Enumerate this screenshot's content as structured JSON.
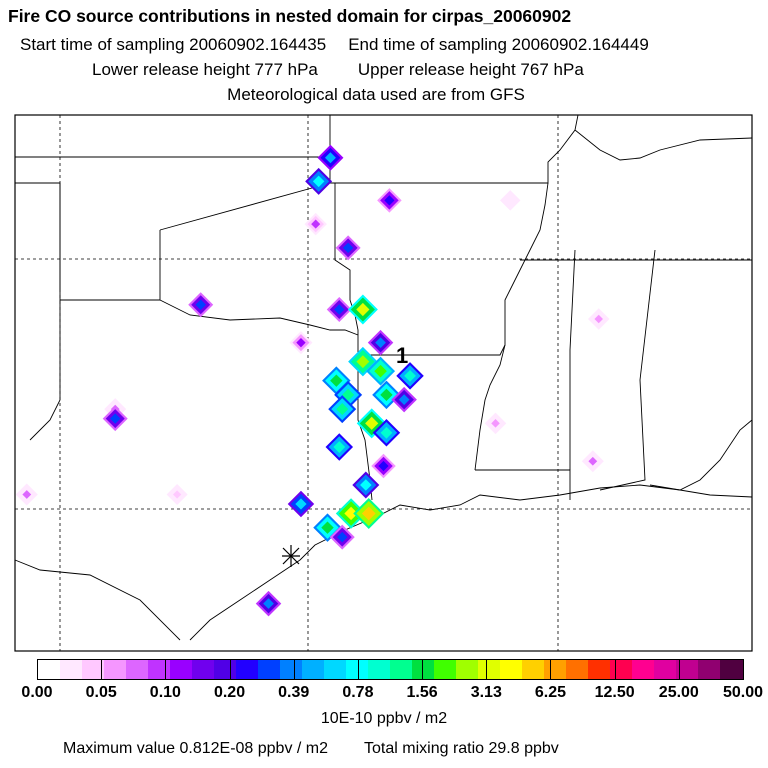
{
  "header": {
    "title": "Fire CO source contributions in nested domain for cirpas_20060902",
    "start_label": "Start time of sampling 20060902.164435",
    "end_label": "End time of sampling 20060902.164449",
    "lower_label": "Lower release height  777 hPa",
    "upper_label": "Upper release height  767 hPa",
    "met_label": "Meteorological data used are from GFS"
  },
  "map": {
    "receptor_label": "1",
    "colors": {
      "border": "#000000",
      "grid": "#000000",
      "background": "#ffffff"
    },
    "sources": [
      {
        "lon": -94.3,
        "lat": 36.9,
        "level": 12
      },
      {
        "lon": -94.7,
        "lat": 36.4,
        "level": 14
      },
      {
        "lon": -92.3,
        "lat": 36.0,
        "level": 9
      },
      {
        "lon": -94.8,
        "lat": 35.5,
        "level": 5
      },
      {
        "lon": -93.7,
        "lat": 35.0,
        "level": 10
      },
      {
        "lon": -98.7,
        "lat": 33.8,
        "level": 10
      },
      {
        "lon": -94.0,
        "lat": 33.7,
        "level": 10
      },
      {
        "lon": -93.2,
        "lat": 33.7,
        "level": 20
      },
      {
        "lon": -92.6,
        "lat": 33.0,
        "level": 11
      },
      {
        "lon": -95.3,
        "lat": 33.0,
        "level": 6
      },
      {
        "lon": -93.2,
        "lat": 32.6,
        "level": 19
      },
      {
        "lon": -92.6,
        "lat": 32.4,
        "level": 18
      },
      {
        "lon": -91.6,
        "lat": 32.3,
        "level": 15
      },
      {
        "lon": -94.1,
        "lat": 32.2,
        "level": 17
      },
      {
        "lon": -93.7,
        "lat": 31.9,
        "level": 16
      },
      {
        "lon": -92.4,
        "lat": 31.9,
        "level": 17
      },
      {
        "lon": -91.8,
        "lat": 31.8,
        "level": 11
      },
      {
        "lon": -101.6,
        "lat": 31.6,
        "level": 4
      },
      {
        "lon": -101.6,
        "lat": 31.4,
        "level": 10
      },
      {
        "lon": -93.9,
        "lat": 31.6,
        "level": 16
      },
      {
        "lon": -92.9,
        "lat": 31.3,
        "level": 20
      },
      {
        "lon": -92.4,
        "lat": 31.1,
        "level": 15
      },
      {
        "lon": -94.0,
        "lat": 30.8,
        "level": 15
      },
      {
        "lon": -92.5,
        "lat": 30.4,
        "level": 9
      },
      {
        "lon": -93.1,
        "lat": 30.0,
        "level": 14
      },
      {
        "lon": -95.3,
        "lat": 29.6,
        "level": 13
      },
      {
        "lon": -93.6,
        "lat": 29.4,
        "level": 21
      },
      {
        "lon": -93.0,
        "lat": 29.4,
        "level": 22
      },
      {
        "lon": -94.4,
        "lat": 29.1,
        "level": 17
      },
      {
        "lon": -93.9,
        "lat": 28.9,
        "level": 10
      },
      {
        "lon": -96.4,
        "lat": 27.5,
        "level": 11
      },
      {
        "lon": -104.6,
        "lat": 29.8,
        "level": 4
      },
      {
        "lon": -99.5,
        "lat": 29.8,
        "level": 2
      },
      {
        "lon": -88.7,
        "lat": 31.3,
        "level": 3
      },
      {
        "lon": -85.4,
        "lat": 30.5,
        "level": 4
      },
      {
        "lon": -85.2,
        "lat": 33.5,
        "level": 3
      },
      {
        "lon": -88.2,
        "lat": 36.0,
        "level": 1
      }
    ]
  },
  "colorbar": {
    "colors": [
      "#ffffff",
      "#ffe8ff",
      "#ffc8ff",
      "#f596ff",
      "#dd66ff",
      "#c033ff",
      "#9900ff",
      "#7000ee",
      "#5000e6",
      "#2200ff",
      "#0040ff",
      "#0080ff",
      "#00b0ff",
      "#00d8ff",
      "#00ffff",
      "#00ffd0",
      "#00ff90",
      "#00e040",
      "#40ff00",
      "#a0ff00",
      "#e0ff00",
      "#ffff00",
      "#ffd000",
      "#ffa000",
      "#ff7000",
      "#ff3000",
      "#ff0050",
      "#ff0090",
      "#e000a0",
      "#c00090",
      "#900070",
      "#500040"
    ],
    "ticks": [
      "0.00",
      "0.05",
      "0.10",
      "0.20",
      "0.39",
      "0.78",
      "1.56",
      "3.13",
      "6.25",
      "12.50",
      "25.00",
      "50.00"
    ],
    "units": "10E-10 ppbv / m2"
  },
  "footer": {
    "max_label": "Maximum value  0.812E-08 ppbv / m2",
    "total_label": "Total mixing ratio       29.8 ppbv"
  }
}
